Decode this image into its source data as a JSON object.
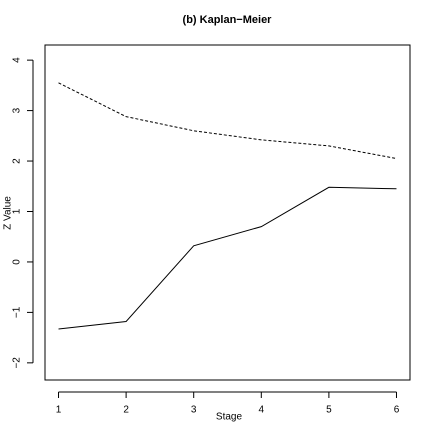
{
  "chart_data": {
    "type": "line",
    "title": "(b) Kaplan−Meier",
    "x_label": "Stage",
    "y_label": "Z Value",
    "x": [
      1,
      2,
      3,
      4,
      5,
      6
    ],
    "series": [
      {
        "color": "#000000",
        "linestyle": "dashed",
        "values": [
          3.55,
          2.88,
          2.6,
          2.42,
          2.3,
          2.05
        ]
      },
      {
        "color": "#000000",
        "linestyle": "solid",
        "values": [
          -1.33,
          -1.18,
          0.32,
          0.7,
          1.48,
          1.45
        ]
      }
    ],
    "xlim": [
      0.8,
      6.2
    ],
    "ylim": [
      -2.34,
      4.3
    ],
    "xticks": [
      1,
      2,
      3,
      4,
      5,
      6
    ],
    "yticks": [
      {
        "value": -2,
        "label": "−2"
      },
      {
        "value": -1,
        "label": "−1"
      },
      0,
      1,
      2,
      3,
      4
    ]
  }
}
